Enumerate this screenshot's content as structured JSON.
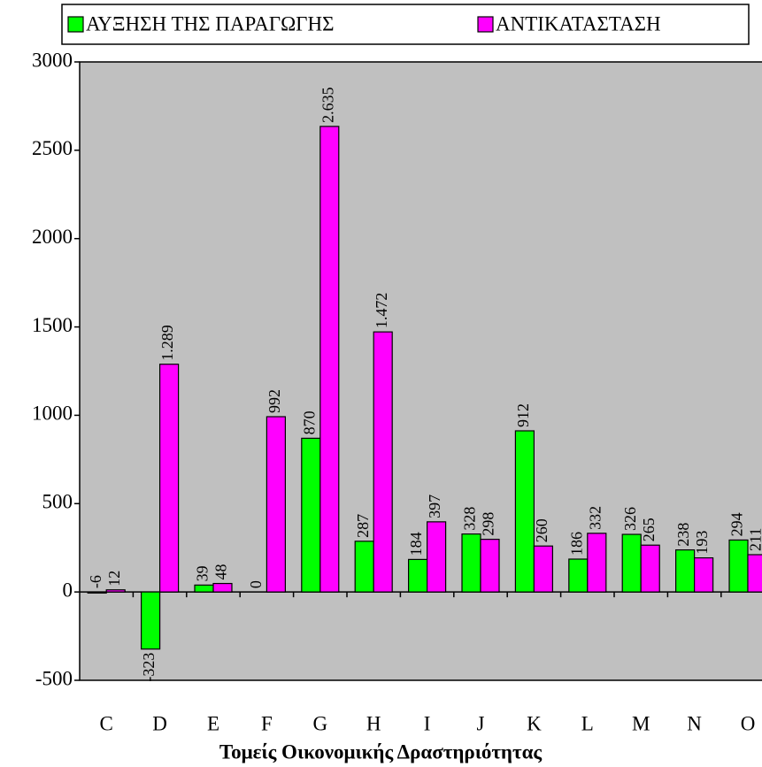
{
  "chart_data": {
    "type": "bar",
    "x_label": "Τομείς Οικονομικής Δραστηριότητας",
    "categories": [
      "C",
      "D",
      "E",
      "F",
      "G",
      "H",
      "I",
      "J",
      "K",
      "L",
      "M",
      "N",
      "O"
    ],
    "series": [
      {
        "name": "ΑΥΞΗΣΗ ΤΗΣ ΠΑΡΑΓΩΓΗΣ",
        "color": "#00ff00",
        "values": [
          -6,
          -323,
          39,
          0,
          870,
          287,
          184,
          328,
          912,
          186,
          326,
          238,
          294
        ]
      },
      {
        "name": "ΑΝΤΙΚΑΤΑΣΤΑΣΗ",
        "color": "#ff00ff",
        "values": [
          12,
          1289,
          48,
          992,
          2635,
          1472,
          397,
          298,
          260,
          332,
          265,
          193,
          211
        ],
        "value_labels": [
          "12",
          "1.289",
          "48",
          "992",
          "2.635",
          "1.472",
          "397",
          "298",
          "260",
          "332",
          "265",
          "193",
          "211"
        ]
      }
    ],
    "ylim": [
      -500,
      3000
    ],
    "yticks": [
      -500,
      0,
      500,
      1000,
      1500,
      2000,
      2500,
      3000
    ],
    "legend": "top",
    "plot_background": "#c0c0c0"
  }
}
